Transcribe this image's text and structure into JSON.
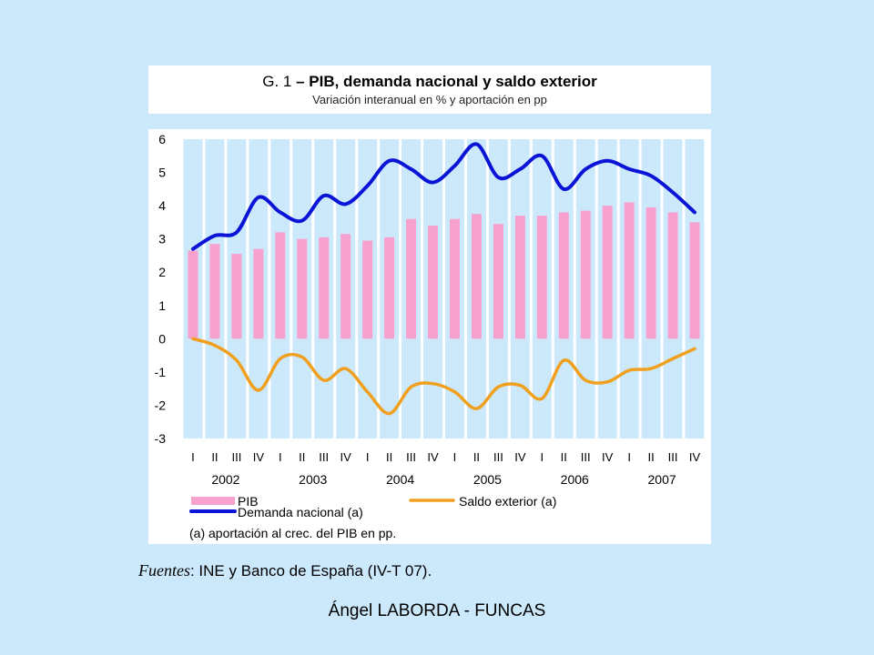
{
  "header": {
    "title_prefix": "G. 1",
    "title_bold": "– PIB, demanda nacional y saldo exterior",
    "subtitle": "Variación interanual en % y aportación en pp"
  },
  "chart_data": {
    "type": "bar",
    "quarters": [
      "I",
      "II",
      "III",
      "IV",
      "I",
      "II",
      "III",
      "IV",
      "I",
      "II",
      "III",
      "IV",
      "I",
      "II",
      "III",
      "IV",
      "I",
      "II",
      "III",
      "IV",
      "I",
      "II",
      "III",
      "IV"
    ],
    "years": [
      "2002",
      "2003",
      "2004",
      "2005",
      "2006",
      "2007"
    ],
    "ylim": [
      -3,
      6
    ],
    "yticks": [
      "6",
      "5",
      "4",
      "3",
      "2",
      "1",
      "0",
      "-1",
      "-2",
      "-3"
    ],
    "series": [
      {
        "name": "PIB",
        "kind": "bar",
        "color": "#f7a1cf",
        "values": [
          2.65,
          2.85,
          2.55,
          2.7,
          3.2,
          3.0,
          3.05,
          3.15,
          2.95,
          3.05,
          3.6,
          3.4,
          3.6,
          3.75,
          3.45,
          3.7,
          3.7,
          3.8,
          3.85,
          4.0,
          4.1,
          3.95,
          3.8,
          3.5
        ]
      },
      {
        "name": "Demanda nacional (a)",
        "kind": "line",
        "color": "#0a14d6",
        "values": [
          2.7,
          3.1,
          3.2,
          4.25,
          3.8,
          3.55,
          4.3,
          4.05,
          4.6,
          5.35,
          5.1,
          4.7,
          5.2,
          5.85,
          4.85,
          5.1,
          5.5,
          4.5,
          5.1,
          5.35,
          5.1,
          4.9,
          4.4,
          3.8
        ]
      },
      {
        "name": "Saldo exterior (a)",
        "kind": "line",
        "color": "#f0a01e",
        "values": [
          0.0,
          -0.2,
          -0.65,
          -1.55,
          -0.6,
          -0.55,
          -1.25,
          -0.9,
          -1.6,
          -2.25,
          -1.45,
          -1.35,
          -1.6,
          -2.1,
          -1.45,
          -1.4,
          -1.8,
          -0.65,
          -1.25,
          -1.3,
          -0.95,
          -0.9,
          -0.6,
          -0.3
        ]
      }
    ],
    "legend": {
      "pib": "PIB",
      "saldo": "Saldo exterior (a)",
      "demanda": "Demanda nacional (a)"
    },
    "note": "(a) aportación al crec. del PIB en pp."
  },
  "sources": {
    "label": "Fuentes",
    "text": ": INE y Banco de España (IV-T 07)."
  },
  "footer": "Ángel LABORDA - FUNCAS"
}
